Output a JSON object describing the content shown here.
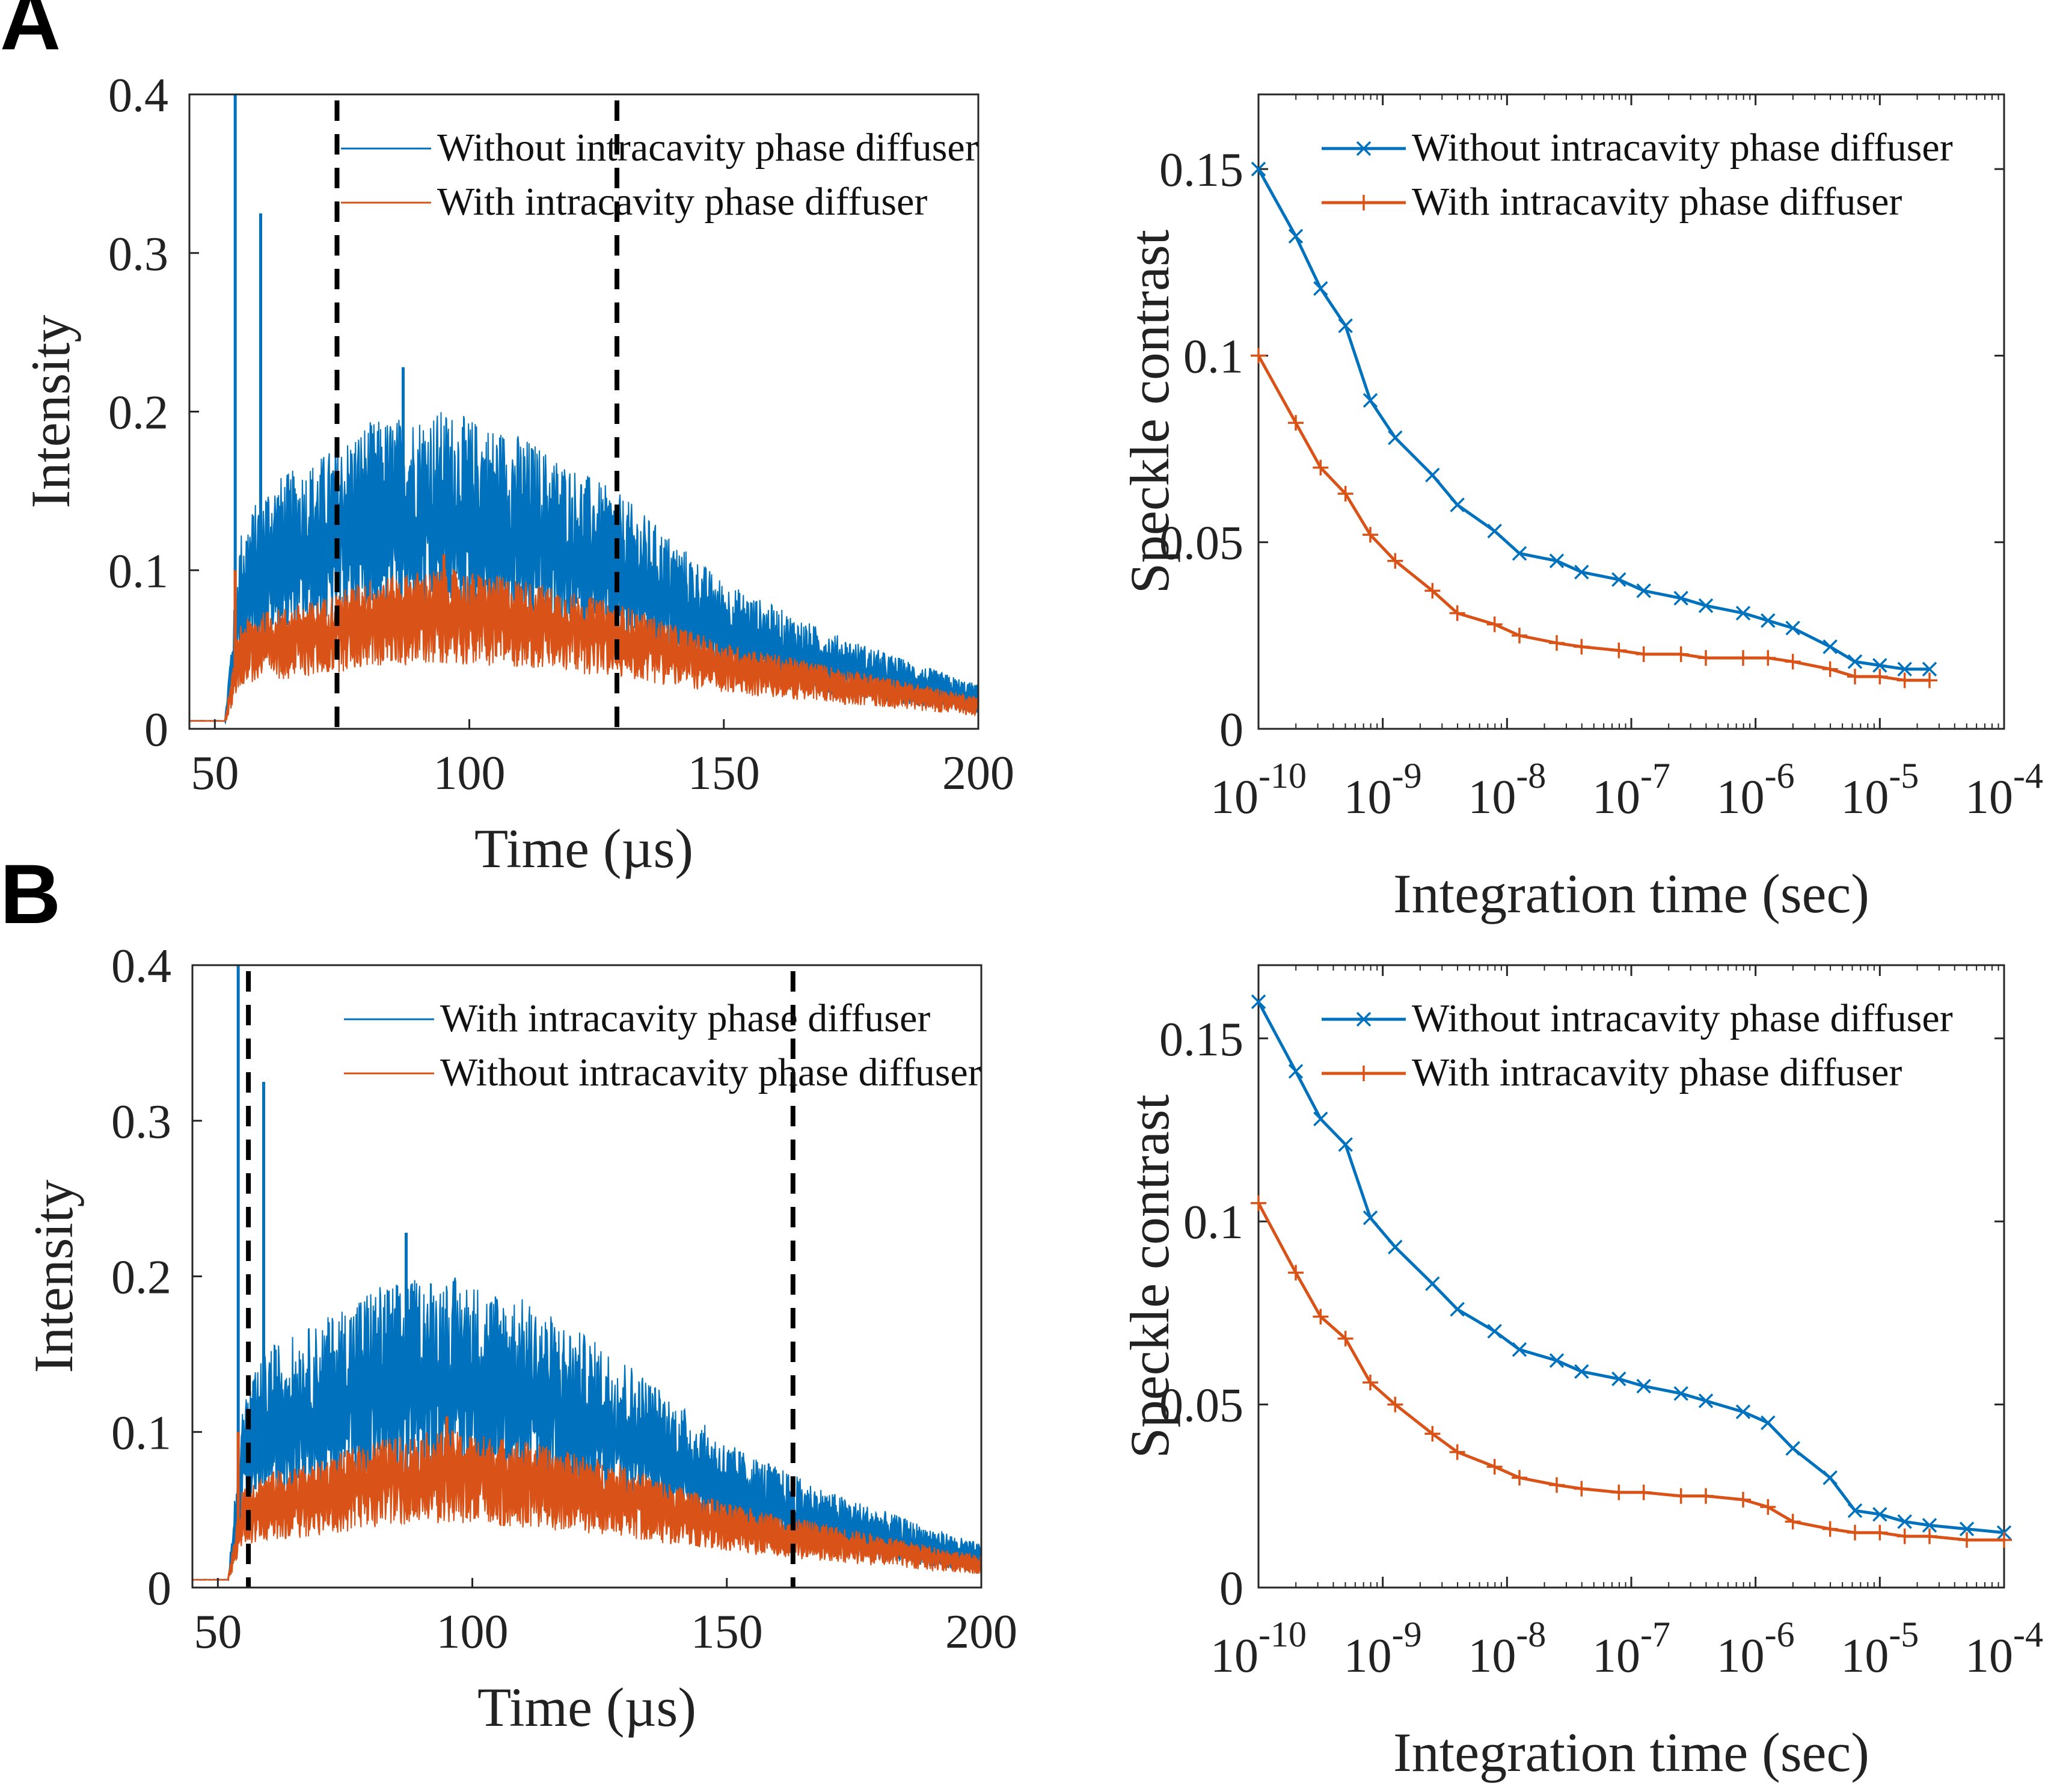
{
  "panels": {
    "A": {
      "label": "A"
    },
    "B": {
      "label": "B"
    }
  },
  "colors": {
    "blue": "#0072BD",
    "orange": "#D95319",
    "axis": "#262626",
    "dash": "#000000"
  },
  "chart_data": [
    {
      "id": "A-intensity",
      "type": "line",
      "panel": "A",
      "title": "",
      "xlabel": "Time (µs)",
      "ylabel": "Intensity",
      "xlim": [
        45,
        200
      ],
      "ylim": [
        0,
        0.4
      ],
      "xticks": [
        50,
        100,
        150,
        200
      ],
      "xtick_labels": [
        "50",
        "100",
        "150",
        "200"
      ],
      "yticks": [
        0,
        0.1,
        0.2,
        0.3,
        0.4
      ],
      "ytick_labels": [
        "0",
        "0.1",
        "0.2",
        "0.3",
        "0.4"
      ],
      "vlines": [
        74,
        129
      ],
      "legend_position": "top-right",
      "series": [
        {
          "name": "Without intracavity phase diffuser",
          "color": "#0072BD",
          "onset": 52,
          "peak_time": 95,
          "center": [
            [
              45,
              0.005
            ],
            [
              52,
              0.005
            ],
            [
              55,
              0.08
            ],
            [
              60,
              0.1
            ],
            [
              70,
              0.11
            ],
            [
              80,
              0.125
            ],
            [
              95,
              0.13
            ],
            [
              110,
              0.12
            ],
            [
              130,
              0.095
            ],
            [
              150,
              0.06
            ],
            [
              170,
              0.04
            ],
            [
              190,
              0.025
            ],
            [
              200,
              0.018
            ]
          ],
          "spikes": [
            [
              54,
              0.4
            ],
            [
              59,
              0.325
            ],
            [
              87,
              0.228
            ]
          ]
        },
        {
          "name": "With intracavity phase diffuser",
          "color": "#D95319",
          "onset": 52,
          "peak_time": 95,
          "center": [
            [
              45,
              0.005
            ],
            [
              52,
              0.005
            ],
            [
              55,
              0.05
            ],
            [
              60,
              0.055
            ],
            [
              70,
              0.06
            ],
            [
              80,
              0.07
            ],
            [
              95,
              0.075
            ],
            [
              110,
              0.07
            ],
            [
              130,
              0.058
            ],
            [
              150,
              0.04
            ],
            [
              170,
              0.03
            ],
            [
              190,
              0.02
            ],
            [
              200,
              0.015
            ]
          ],
          "spikes": [
            [
              54,
              0.1
            ],
            [
              95,
              0.11
            ]
          ]
        }
      ]
    },
    {
      "id": "A-speckle",
      "type": "line",
      "panel": "A",
      "title": "",
      "xlabel": "Integration time (sec)",
      "ylabel": "Speckle contrast",
      "xscale": "log",
      "xlim_exp": [
        -10,
        -4
      ],
      "ylim": [
        0,
        0.17
      ],
      "xticks_exp": [
        -10,
        -9,
        -8,
        -7,
        -6,
        -5,
        -4
      ],
      "xtick_labels": [
        "10",
        "10",
        "10",
        "10",
        "10",
        "10",
        "10"
      ],
      "xtick_exponents": [
        "-10",
        "-9",
        "-8",
        "-7",
        "-6",
        "-5",
        "-4"
      ],
      "yticks": [
        0,
        0.05,
        0.1,
        0.15
      ],
      "ytick_labels": [
        "0",
        "0.05",
        "0.1",
        "0.15"
      ],
      "legend_position": "top-right",
      "x_exp": [
        -10,
        -9.7,
        -9.5,
        -9.3,
        -9.1,
        -8.9,
        -8.6,
        -8.4,
        -8.1,
        -7.9,
        -7.6,
        -7.4,
        -7.1,
        -6.9,
        -6.6,
        -6.4,
        -6.1,
        -5.9,
        -5.7,
        -5.4,
        -5.2,
        -5.0,
        -4.8,
        -4.6
      ],
      "series": [
        {
          "name": "Without intracavity phase diffuser",
          "color": "#0072BD",
          "marker": "x",
          "values": [
            0.15,
            0.132,
            0.118,
            0.108,
            0.088,
            0.078,
            0.068,
            0.06,
            0.053,
            0.047,
            0.045,
            0.042,
            0.04,
            0.037,
            0.035,
            0.033,
            0.031,
            0.029,
            0.027,
            0.022,
            0.018,
            0.017,
            0.016,
            0.016
          ]
        },
        {
          "name": "With intracavity phase diffuser",
          "color": "#D95319",
          "marker": "+",
          "values": [
            0.1,
            0.082,
            0.07,
            0.063,
            0.052,
            0.045,
            0.037,
            0.031,
            0.028,
            0.025,
            0.023,
            0.022,
            0.021,
            0.02,
            0.02,
            0.019,
            0.019,
            0.019,
            0.018,
            0.016,
            0.014,
            0.014,
            0.013,
            0.013
          ]
        }
      ]
    },
    {
      "id": "B-intensity",
      "type": "line",
      "panel": "B",
      "title": "",
      "xlabel": "Time (µs)",
      "ylabel": "Intensity",
      "xlim": [
        45,
        200
      ],
      "ylim": [
        0,
        0.4
      ],
      "xticks": [
        50,
        100,
        150,
        200
      ],
      "xtick_labels": [
        "50",
        "100",
        "150",
        "200"
      ],
      "yticks": [
        0,
        0.1,
        0.2,
        0.3,
        0.4
      ],
      "ytick_labels": [
        "0",
        "0.1",
        "0.2",
        "0.3",
        "0.4"
      ],
      "vlines": [
        56,
        163
      ],
      "legend_position": "top-right",
      "series": [
        {
          "name": "With intracavity phase diffuser",
          "color": "#0072BD",
          "onset": 52,
          "peak_time": 95,
          "center": [
            [
              45,
              0.005
            ],
            [
              52,
              0.005
            ],
            [
              55,
              0.08
            ],
            [
              60,
              0.1
            ],
            [
              70,
              0.11
            ],
            [
              80,
              0.125
            ],
            [
              95,
              0.13
            ],
            [
              110,
              0.12
            ],
            [
              130,
              0.095
            ],
            [
              150,
              0.06
            ],
            [
              170,
              0.04
            ],
            [
              190,
              0.025
            ],
            [
              200,
              0.018
            ]
          ],
          "spikes": [
            [
              54,
              0.4
            ],
            [
              59,
              0.325
            ],
            [
              87,
              0.228
            ]
          ]
        },
        {
          "name": "Without intracavity phase diffuser",
          "color": "#D95319",
          "onset": 52,
          "peak_time": 95,
          "center": [
            [
              45,
              0.005
            ],
            [
              52,
              0.005
            ],
            [
              55,
              0.05
            ],
            [
              60,
              0.055
            ],
            [
              70,
              0.06
            ],
            [
              80,
              0.07
            ],
            [
              95,
              0.075
            ],
            [
              110,
              0.07
            ],
            [
              130,
              0.058
            ],
            [
              150,
              0.04
            ],
            [
              170,
              0.03
            ],
            [
              190,
              0.02
            ],
            [
              200,
              0.015
            ]
          ],
          "spikes": [
            [
              54,
              0.1
            ],
            [
              95,
              0.11
            ]
          ]
        }
      ]
    },
    {
      "id": "B-speckle",
      "type": "line",
      "panel": "B",
      "title": "",
      "xlabel": "Integration time (sec)",
      "ylabel": "Speckle contrast",
      "xscale": "log",
      "xlim_exp": [
        -10,
        -4
      ],
      "ylim": [
        0,
        0.17
      ],
      "xticks_exp": [
        -10,
        -9,
        -8,
        -7,
        -6,
        -5,
        -4
      ],
      "xtick_labels": [
        "10",
        "10",
        "10",
        "10",
        "10",
        "10",
        "10"
      ],
      "xtick_exponents": [
        "-10",
        "-9",
        "-8",
        "-7",
        "-6",
        "-5",
        "-4"
      ],
      "yticks": [
        0,
        0.05,
        0.1,
        0.15
      ],
      "ytick_labels": [
        "0",
        "0.05",
        "0.1",
        "0.15"
      ],
      "legend_position": "top-right",
      "x_exp": [
        -10,
        -9.7,
        -9.5,
        -9.3,
        -9.1,
        -8.9,
        -8.6,
        -8.4,
        -8.1,
        -7.9,
        -7.6,
        -7.4,
        -7.1,
        -6.9,
        -6.6,
        -6.4,
        -6.1,
        -5.9,
        -5.7,
        -5.4,
        -5.2,
        -5.0,
        -4.8,
        -4.6,
        -4.3,
        -4.0
      ],
      "series": [
        {
          "name": "Without intracavity phase diffuser",
          "color": "#0072BD",
          "marker": "x",
          "values": [
            0.16,
            0.141,
            0.128,
            0.121,
            0.101,
            0.093,
            0.083,
            0.076,
            0.07,
            0.065,
            0.062,
            0.059,
            0.057,
            0.055,
            0.053,
            0.051,
            0.048,
            0.045,
            0.038,
            0.03,
            0.021,
            0.02,
            0.018,
            0.017,
            0.016,
            0.015
          ]
        },
        {
          "name": "With intracavity phase diffuser",
          "color": "#D95319",
          "marker": "+",
          "values": [
            0.105,
            0.086,
            0.074,
            0.068,
            0.056,
            0.05,
            0.042,
            0.037,
            0.033,
            0.03,
            0.028,
            0.027,
            0.026,
            0.026,
            0.025,
            0.025,
            0.024,
            0.022,
            0.018,
            0.016,
            0.015,
            0.015,
            0.014,
            0.014,
            0.013,
            0.013
          ]
        }
      ]
    }
  ]
}
